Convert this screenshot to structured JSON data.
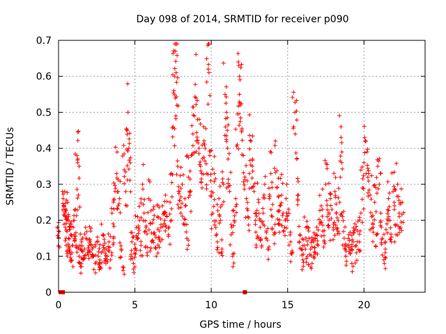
{
  "chart_data": {
    "type": "scatter",
    "title": "Day 098 of 2014, SRMTID for receiver p090",
    "xlabel": "GPS time / hours",
    "ylabel": "SRMTID / TECUs",
    "xlim": [
      0,
      24
    ],
    "ylim": [
      0,
      0.7
    ],
    "x_ticks": [
      0,
      5,
      10,
      15,
      20
    ],
    "x_tick_labels": [
      "0",
      "5",
      "10",
      "15",
      "20"
    ],
    "y_ticks": [
      0,
      0.1,
      0.2,
      0.3,
      0.4,
      0.5,
      0.6,
      0.7
    ],
    "y_tick_labels": [
      "0",
      "0.1",
      "0.2",
      "0.3",
      "0.4",
      "0.5",
      "0.6",
      "0.7"
    ],
    "grid": true,
    "marker": "plus",
    "series_color": "#ff0000",
    "zero_markers": [
      {
        "x": 0.15,
        "y": 0
      },
      {
        "x": 0.28,
        "y": 0
      },
      {
        "x": 12.2,
        "y": 0
      }
    ],
    "series": [
      {
        "name": "SRMTID",
        "points": [
          [
            0.0,
            0.17
          ],
          [
            0.0,
            0.15
          ],
          [
            0.3,
            0.26
          ],
          [
            0.35,
            0.24
          ],
          [
            0.4,
            0.28
          ],
          [
            0.42,
            0.22
          ],
          [
            0.45,
            0.18
          ],
          [
            0.5,
            0.13
          ],
          [
            0.55,
            0.21
          ],
          [
            0.6,
            0.25
          ],
          [
            0.65,
            0.15
          ],
          [
            0.7,
            0.11
          ],
          [
            0.75,
            0.19
          ],
          [
            0.8,
            0.16
          ],
          [
            0.85,
            0.09
          ],
          [
            0.9,
            0.13
          ],
          [
            1.0,
            0.2
          ],
          [
            1.05,
            0.15
          ],
          [
            1.1,
            0.23
          ],
          [
            1.15,
            0.13
          ],
          [
            1.2,
            0.38
          ],
          [
            1.25,
            0.36
          ],
          [
            1.3,
            0.27
          ],
          [
            1.35,
            0.1
          ],
          [
            1.4,
            0.08
          ],
          [
            1.45,
            0.12
          ],
          [
            1.5,
            0.14
          ],
          [
            1.6,
            0.09
          ],
          [
            1.7,
            0.12
          ],
          [
            1.8,
            0.15
          ],
          [
            1.9,
            0.11
          ],
          [
            2.0,
            0.13
          ],
          [
            2.1,
            0.17
          ],
          [
            2.2,
            0.12
          ],
          [
            2.3,
            0.1
          ],
          [
            2.4,
            0.08
          ],
          [
            2.5,
            0.14
          ],
          [
            2.6,
            0.1
          ],
          [
            2.7,
            0.09
          ],
          [
            2.8,
            0.11
          ],
          [
            2.9,
            0.16
          ],
          [
            3.0,
            0.12
          ],
          [
            3.1,
            0.08
          ],
          [
            3.2,
            0.1
          ],
          [
            3.3,
            0.14
          ],
          [
            3.4,
            0.09
          ],
          [
            3.5,
            0.22
          ],
          [
            3.6,
            0.15
          ],
          [
            3.7,
            0.28
          ],
          [
            3.8,
            0.33
          ],
          [
            3.9,
            0.24
          ],
          [
            4.0,
            0.26
          ],
          [
            4.1,
            0.12
          ],
          [
            4.2,
            0.07
          ],
          [
            4.3,
            0.34
          ],
          [
            4.4,
            0.28
          ],
          [
            4.5,
            0.45
          ],
          [
            4.55,
            0.5
          ],
          [
            4.6,
            0.4
          ],
          [
            4.7,
            0.36
          ],
          [
            4.75,
            0.1
          ],
          [
            4.8,
            0.14
          ],
          [
            4.9,
            0.08
          ],
          [
            5.0,
            0.12
          ],
          [
            5.1,
            0.18
          ],
          [
            5.2,
            0.15
          ],
          [
            5.3,
            0.2
          ],
          [
            5.4,
            0.13
          ],
          [
            5.5,
            0.3
          ],
          [
            5.6,
            0.22
          ],
          [
            5.7,
            0.17
          ],
          [
            5.8,
            0.11
          ],
          [
            5.9,
            0.26
          ],
          [
            6.0,
            0.19
          ],
          [
            6.1,
            0.14
          ],
          [
            6.2,
            0.23
          ],
          [
            6.3,
            0.16
          ],
          [
            6.4,
            0.1
          ],
          [
            6.5,
            0.21
          ],
          [
            6.6,
            0.15
          ],
          [
            6.7,
            0.18
          ],
          [
            6.8,
            0.24
          ],
          [
            6.9,
            0.22
          ],
          [
            7.0,
            0.27
          ],
          [
            7.1,
            0.21
          ],
          [
            7.2,
            0.16
          ],
          [
            7.3,
            0.25
          ],
          [
            7.4,
            0.33
          ],
          [
            7.5,
            0.46
          ],
          [
            7.55,
            0.56
          ],
          [
            7.6,
            0.6
          ],
          [
            7.65,
            0.67
          ],
          [
            7.7,
            0.61
          ],
          [
            7.75,
            0.52
          ],
          [
            7.8,
            0.35
          ],
          [
            7.9,
            0.28
          ],
          [
            8.0,
            0.22
          ],
          [
            8.1,
            0.3
          ],
          [
            8.2,
            0.19
          ],
          [
            8.3,
            0.24
          ],
          [
            8.4,
            0.15
          ],
          [
            8.5,
            0.32
          ],
          [
            8.6,
            0.27
          ],
          [
            8.7,
            0.38
          ],
          [
            8.8,
            0.44
          ],
          [
            8.9,
            0.49
          ],
          [
            9.0,
            0.54
          ],
          [
            9.1,
            0.48
          ],
          [
            9.2,
            0.4
          ],
          [
            9.3,
            0.35
          ],
          [
            9.4,
            0.29
          ],
          [
            9.5,
            0.46
          ],
          [
            9.6,
            0.4
          ],
          [
            9.7,
            0.33
          ],
          [
            9.8,
            0.62
          ],
          [
            9.85,
            0.61
          ],
          [
            9.9,
            0.38
          ],
          [
            10.0,
            0.28
          ],
          [
            10.1,
            0.22
          ],
          [
            10.2,
            0.33
          ],
          [
            10.3,
            0.18
          ],
          [
            10.4,
            0.14
          ],
          [
            10.5,
            0.26
          ],
          [
            10.6,
            0.2
          ],
          [
            10.7,
            0.12
          ],
          [
            10.8,
            0.3
          ],
          [
            10.9,
            0.55
          ],
          [
            11.0,
            0.5
          ],
          [
            11.05,
            0.45
          ],
          [
            11.1,
            0.37
          ],
          [
            11.2,
            0.28
          ],
          [
            11.3,
            0.16
          ],
          [
            11.4,
            0.1
          ],
          [
            11.5,
            0.2
          ],
          [
            11.6,
            0.26
          ],
          [
            11.7,
            0.41
          ],
          [
            11.8,
            0.63
          ],
          [
            11.85,
            0.6
          ],
          [
            11.9,
            0.52
          ],
          [
            12.0,
            0.45
          ],
          [
            12.1,
            0.38
          ],
          [
            12.2,
            0.32
          ],
          [
            12.3,
            0.26
          ],
          [
            12.4,
            0.21
          ],
          [
            12.5,
            0.33
          ],
          [
            12.6,
            0.42
          ],
          [
            12.7,
            0.37
          ],
          [
            12.8,
            0.28
          ],
          [
            12.9,
            0.2
          ],
          [
            13.0,
            0.15
          ],
          [
            13.1,
            0.25
          ],
          [
            13.2,
            0.18
          ],
          [
            13.3,
            0.13
          ],
          [
            13.4,
            0.22
          ],
          [
            13.5,
            0.3
          ],
          [
            13.6,
            0.17
          ],
          [
            13.7,
            0.12
          ],
          [
            13.8,
            0.26
          ],
          [
            13.9,
            0.33
          ],
          [
            14.0,
            0.21
          ],
          [
            14.1,
            0.16
          ],
          [
            14.2,
            0.42
          ],
          [
            14.3,
            0.29
          ],
          [
            14.4,
            0.19
          ],
          [
            14.5,
            0.24
          ],
          [
            14.6,
            0.27
          ],
          [
            14.7,
            0.22
          ],
          [
            14.8,
            0.18
          ],
          [
            14.9,
            0.26
          ],
          [
            15.0,
            0.2
          ],
          [
            15.2,
            0.14
          ],
          [
            15.3,
            0.11
          ],
          [
            15.4,
            0.46
          ],
          [
            15.5,
            0.44
          ],
          [
            15.6,
            0.37
          ],
          [
            15.7,
            0.27
          ],
          [
            15.8,
            0.16
          ],
          [
            15.9,
            0.12
          ],
          [
            16.0,
            0.09
          ],
          [
            16.1,
            0.13
          ],
          [
            16.2,
            0.18
          ],
          [
            16.3,
            0.1
          ],
          [
            16.4,
            0.15
          ],
          [
            16.5,
            0.12
          ],
          [
            16.6,
            0.08
          ],
          [
            16.7,
            0.14
          ],
          [
            16.8,
            0.11
          ],
          [
            16.9,
            0.16
          ],
          [
            17.0,
            0.13
          ],
          [
            17.1,
            0.19
          ],
          [
            17.2,
            0.24
          ],
          [
            17.3,
            0.17
          ],
          [
            17.4,
            0.14
          ],
          [
            17.5,
            0.3
          ],
          [
            17.6,
            0.21
          ],
          [
            17.7,
            0.18
          ],
          [
            17.8,
            0.26
          ],
          [
            17.9,
            0.23
          ],
          [
            18.0,
            0.18
          ],
          [
            18.1,
            0.28
          ],
          [
            18.2,
            0.22
          ],
          [
            18.3,
            0.17
          ],
          [
            18.4,
            0.25
          ],
          [
            18.5,
            0.43
          ],
          [
            18.55,
            0.39
          ],
          [
            18.6,
            0.21
          ],
          [
            18.7,
            0.15
          ],
          [
            18.8,
            0.1
          ],
          [
            18.9,
            0.13
          ],
          [
            19.0,
            0.16
          ],
          [
            19.1,
            0.12
          ],
          [
            19.2,
            0.08
          ],
          [
            19.3,
            0.14
          ],
          [
            19.4,
            0.19
          ],
          [
            19.5,
            0.11
          ],
          [
            19.6,
            0.17
          ],
          [
            19.7,
            0.14
          ],
          [
            19.8,
            0.22
          ],
          [
            19.9,
            0.29
          ],
          [
            20.0,
            0.36
          ],
          [
            20.1,
            0.42
          ],
          [
            20.2,
            0.39
          ],
          [
            20.3,
            0.33
          ],
          [
            20.4,
            0.27
          ],
          [
            20.5,
            0.21
          ],
          [
            20.6,
            0.18
          ],
          [
            20.7,
            0.25
          ],
          [
            20.8,
            0.16
          ],
          [
            20.9,
            0.35
          ],
          [
            21.0,
            0.3
          ],
          [
            21.1,
            0.22
          ],
          [
            21.2,
            0.15
          ],
          [
            21.3,
            0.09
          ],
          [
            21.4,
            0.12
          ],
          [
            21.5,
            0.19
          ],
          [
            21.6,
            0.26
          ],
          [
            21.7,
            0.2
          ],
          [
            21.8,
            0.14
          ],
          [
            21.9,
            0.28
          ],
          [
            22.0,
            0.24
          ],
          [
            22.1,
            0.16
          ],
          [
            22.2,
            0.3
          ],
          [
            22.3,
            0.22
          ],
          [
            22.4,
            0.18
          ],
          [
            22.5,
            0.25
          ]
        ]
      }
    ]
  }
}
